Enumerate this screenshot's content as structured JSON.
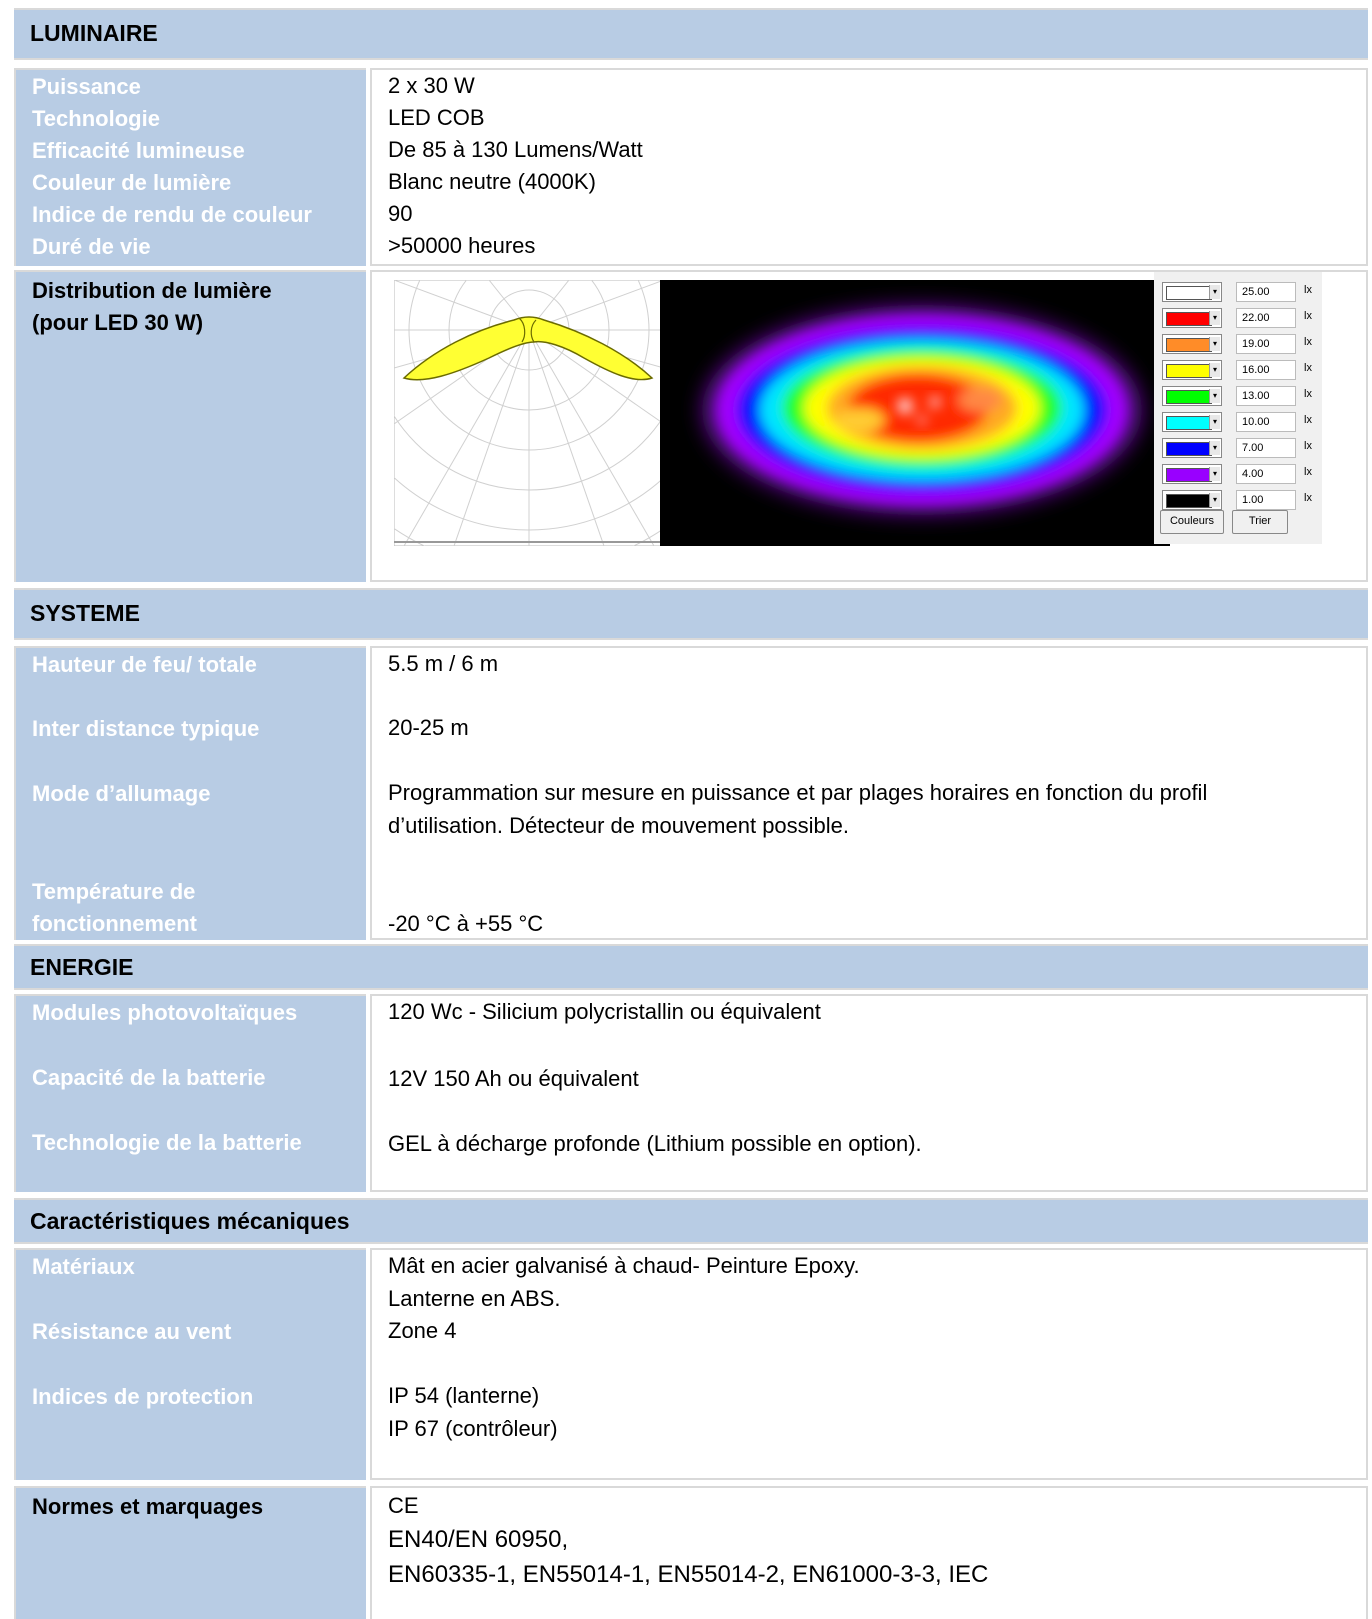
{
  "luminaire": {
    "title": "LUMINAIRE",
    "labels": [
      "Puissance",
      "Technologie",
      "Efficacité lumineuse",
      "Couleur de lumière",
      "Indice de rendu de couleur",
      "Duré de vie"
    ],
    "values": [
      "2 x 30 W",
      "LED COB",
      "De 85 à 130 Lumens/Watt",
      "Blanc neutre (4000K)",
      "90",
      ">50000 heures"
    ]
  },
  "distribution": {
    "label_line1": "Distribution de lumière",
    "label_line2": "(pour LED 30 W)",
    "legend": [
      {
        "value": "25.00",
        "unit": "lx",
        "color": "#ffffff"
      },
      {
        "value": "22.00",
        "unit": "lx",
        "color": "#ff0000"
      },
      {
        "value": "19.00",
        "unit": "lx",
        "color": "#ff8c28"
      },
      {
        "value": "16.00",
        "unit": "lx",
        "color": "#ffff00"
      },
      {
        "value": "13.00",
        "unit": "lx",
        "color": "#00ff00"
      },
      {
        "value": "10.00",
        "unit": "lx",
        "color": "#00ffff"
      },
      {
        "value": "7.00",
        "unit": "lx",
        "color": "#0000ff"
      },
      {
        "value": "4.00",
        "unit": "lx",
        "color": "#9900ff"
      },
      {
        "value": "1.00",
        "unit": "lx",
        "color": "#000000"
      }
    ],
    "btn_colors": "Couleurs",
    "btn_sort": "Trier"
  },
  "systeme": {
    "title": "SYSTEME",
    "label_height": "Hauteur de feu/ totale",
    "value_height": "5.5 m / 6 m",
    "label_distance": "Inter distance typique",
    "value_distance": "20-25 m",
    "label_mode": "Mode d’allumage",
    "value_mode_line1": "Programmation sur mesure en puissance et par plages horaires en fonction du profil",
    "value_mode_line2": "d’utilisation. Détecteur de mouvement possible.",
    "label_temp_line1": "Température de",
    "label_temp_line2": "fonctionnement",
    "value_temp": "-20 °C à +55 °C"
  },
  "energie": {
    "title": "ENERGIE",
    "label_modules": "Modules photovoltaïques",
    "value_modules": "120 Wc - Silicium polycristallin ou équivalent",
    "label_capacity": "Capacité de la batterie",
    "value_capacity": "12V 150 Ah ou équivalent",
    "label_tech": "Technologie de la batterie",
    "value_tech": "GEL à décharge profonde (Lithium possible en option)."
  },
  "mecanique": {
    "title": "Caractéristiques mécaniques",
    "label_materials": "Matériaux",
    "value_materials_line1": "Mât en acier galvanisé à chaud- Peinture Epoxy.",
    "value_materials_line2": "Lanterne en ABS.",
    "label_wind": "Résistance au vent",
    "value_wind": "Zone 4",
    "label_protection": "Indices de protection",
    "value_protection_line1": "IP 54 (lanterne)",
    "value_protection_line2": "IP 67 (contrôleur)"
  },
  "normes": {
    "label": "Normes et marquages",
    "line1": "CE",
    "line2": "EN40/EN 60950,",
    "line3": "EN60335-1,  EN55014-1,  EN55014-2,  EN61000-3-3,  IEC"
  }
}
